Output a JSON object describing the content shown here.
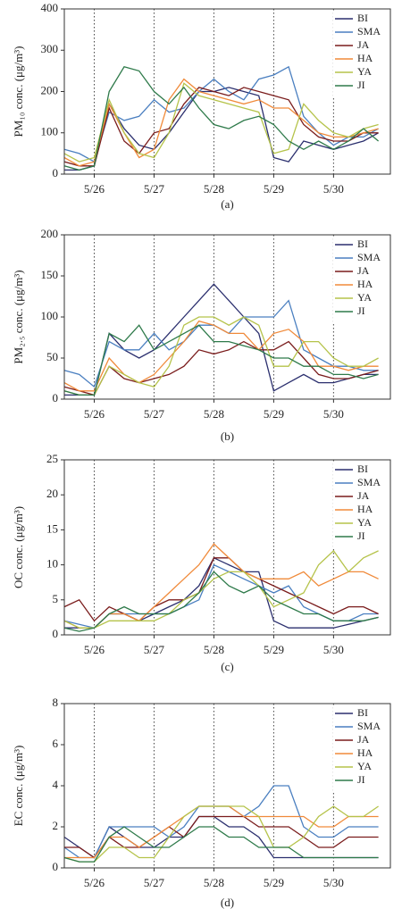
{
  "chart_data": [
    {
      "type": "line",
      "caption": "(a)",
      "ylabel": "PM₁₀ conc. (μg/m³)",
      "legend": "upper right",
      "xgrid": true,
      "x": [
        25.5,
        25.75,
        26,
        26.25,
        26.5,
        26.75,
        27,
        27.25,
        27.5,
        27.75,
        28,
        28.25,
        28.5,
        28.75,
        29,
        29.25,
        29.5,
        29.75,
        30,
        30.25,
        30.5,
        30.75
      ],
      "xlim": [
        25.5,
        30.95
      ],
      "xticks": [
        {
          "value": 26,
          "label": "5/26"
        },
        {
          "value": 27,
          "label": "5/27"
        },
        {
          "value": 28,
          "label": "5/28"
        },
        {
          "value": 29,
          "label": "5/29"
        },
        {
          "value": 30,
          "label": "5/30"
        }
      ],
      "ylim": [
        0,
        400
      ],
      "yticks": [
        0,
        100,
        200,
        300,
        400
      ],
      "series": [
        {
          "name": "BI",
          "color": "#2b2f6e",
          "values": [
            10,
            10,
            20,
            170,
            110,
            70,
            60,
            100,
            150,
            200,
            200,
            210,
            200,
            190,
            40,
            30,
            80,
            70,
            60,
            70,
            80,
            100
          ]
        },
        {
          "name": "SMA",
          "color": "#4a7fc0",
          "values": [
            60,
            50,
            30,
            150,
            130,
            140,
            180,
            150,
            160,
            200,
            230,
            200,
            180,
            230,
            240,
            260,
            140,
            100,
            70,
            90,
            90,
            110
          ]
        },
        {
          "name": "JA",
          "color": "#7a1c1c",
          "values": [
            30,
            20,
            20,
            160,
            80,
            50,
            100,
            110,
            170,
            210,
            200,
            190,
            210,
            200,
            190,
            180,
            120,
            90,
            80,
            80,
            100,
            100
          ]
        },
        {
          "name": "HA",
          "color": "#f08a3a",
          "values": [
            40,
            20,
            30,
            170,
            100,
            40,
            60,
            180,
            230,
            200,
            190,
            180,
            170,
            180,
            160,
            160,
            130,
            100,
            90,
            90,
            100,
            110
          ]
        },
        {
          "name": "YA",
          "color": "#b5c34a",
          "values": [
            50,
            30,
            40,
            180,
            100,
            50,
            40,
            100,
            220,
            190,
            180,
            170,
            160,
            150,
            50,
            60,
            170,
            130,
            100,
            90,
            110,
            120
          ]
        },
        {
          "name": "JI",
          "color": "#2e7a4a",
          "values": [
            20,
            10,
            20,
            200,
            260,
            250,
            200,
            170,
            210,
            160,
            120,
            110,
            130,
            140,
            120,
            80,
            60,
            80,
            60,
            80,
            110,
            80
          ]
        }
      ]
    },
    {
      "type": "line",
      "caption": "(b)",
      "ylabel": "PM₂.₅ conc. (μg/m³)",
      "legend": "upper right",
      "xgrid": true,
      "x": [
        25.5,
        25.75,
        26,
        26.25,
        26.5,
        26.75,
        27,
        27.25,
        27.5,
        27.75,
        28,
        28.25,
        28.5,
        28.75,
        29,
        29.25,
        29.5,
        29.75,
        30,
        30.25,
        30.5,
        30.75
      ],
      "xlim": [
        25.5,
        30.95
      ],
      "xticks": [
        {
          "value": 26,
          "label": "5/26"
        },
        {
          "value": 27,
          "label": "5/27"
        },
        {
          "value": 28,
          "label": "5/28"
        },
        {
          "value": 29,
          "label": "5/29"
        },
        {
          "value": 30,
          "label": "5/30"
        }
      ],
      "ylim": [
        0,
        200
      ],
      "yticks": [
        0,
        50,
        100,
        150,
        200
      ],
      "series": [
        {
          "name": "BI",
          "color": "#2b2f6e",
          "values": [
            5,
            5,
            5,
            80,
            60,
            50,
            60,
            80,
            100,
            120,
            140,
            120,
            100,
            80,
            10,
            20,
            30,
            20,
            20,
            25,
            30,
            30
          ]
        },
        {
          "name": "SMA",
          "color": "#4a7fc0",
          "values": [
            35,
            30,
            15,
            70,
            60,
            60,
            80,
            60,
            70,
            90,
            90,
            80,
            100,
            100,
            100,
            120,
            60,
            50,
            40,
            40,
            35,
            35
          ]
        },
        {
          "name": "JA",
          "color": "#7a1c1c",
          "values": [
            15,
            10,
            5,
            40,
            25,
            20,
            25,
            30,
            40,
            60,
            55,
            60,
            70,
            60,
            60,
            70,
            50,
            30,
            25,
            25,
            30,
            35
          ]
        },
        {
          "name": "HA",
          "color": "#f08a3a",
          "values": [
            20,
            10,
            10,
            50,
            30,
            20,
            30,
            50,
            70,
            95,
            90,
            80,
            80,
            60,
            80,
            85,
            70,
            40,
            40,
            35,
            40,
            40
          ]
        },
        {
          "name": "YA",
          "color": "#b5c34a",
          "values": [
            10,
            5,
            5,
            40,
            30,
            20,
            15,
            40,
            90,
            100,
            100,
            90,
            100,
            90,
            40,
            40,
            70,
            70,
            50,
            40,
            40,
            50
          ]
        },
        {
          "name": "JI",
          "color": "#2e7a4a",
          "values": [
            10,
            5,
            5,
            80,
            70,
            90,
            60,
            70,
            80,
            90,
            70,
            70,
            65,
            60,
            50,
            50,
            40,
            40,
            30,
            30,
            25,
            30
          ]
        }
      ]
    },
    {
      "type": "line",
      "caption": "(c)",
      "ylabel": "OC conc. (μg/m³)",
      "legend": "upper right",
      "xgrid": true,
      "x": [
        25.5,
        25.75,
        26,
        26.25,
        26.5,
        26.75,
        27,
        27.25,
        27.5,
        27.75,
        28,
        28.25,
        28.5,
        28.75,
        29,
        29.25,
        29.5,
        29.75,
        30,
        30.25,
        30.5,
        30.75
      ],
      "xlim": [
        25.5,
        30.95
      ],
      "xticks": [
        {
          "value": 26,
          "label": "5/26"
        },
        {
          "value": 27,
          "label": "5/27"
        },
        {
          "value": 28,
          "label": "5/28"
        },
        {
          "value": 29,
          "label": "5/29"
        },
        {
          "value": 30,
          "label": "5/30"
        }
      ],
      "ylim": [
        0,
        25
      ],
      "yticks": [
        0,
        5,
        10,
        15,
        20,
        25
      ],
      "series": [
        {
          "name": "BI",
          "color": "#2b2f6e",
          "values": [
            1,
            1,
            1,
            3,
            3,
            2,
            3,
            4,
            5,
            7,
            11,
            10,
            9,
            9,
            2,
            1,
            1,
            1,
            1,
            1.5,
            2,
            2.5
          ]
        },
        {
          "name": "SMA",
          "color": "#4a7fc0",
          "values": [
            2,
            1.5,
            1,
            3,
            3,
            3,
            3,
            3,
            4,
            5,
            10,
            9,
            8,
            7,
            6,
            7,
            4,
            3,
            2,
            2,
            3,
            3
          ]
        },
        {
          "name": "JA",
          "color": "#7a1c1c",
          "values": [
            4,
            5,
            2,
            4,
            3,
            2,
            4,
            5,
            5,
            6,
            11,
            11,
            9,
            8,
            7,
            6,
            5,
            4,
            3,
            4,
            4,
            3
          ]
        },
        {
          "name": "HA",
          "color": "#f08a3a",
          "values": [
            2,
            1,
            1,
            3,
            3,
            2,
            4,
            6,
            8,
            10,
            13,
            11,
            9,
            8,
            8,
            8,
            9,
            7,
            8,
            9,
            9,
            8
          ]
        },
        {
          "name": "YA",
          "color": "#b5c34a",
          "values": [
            2,
            1,
            1,
            2,
            2,
            2,
            2,
            3,
            5,
            6,
            8,
            9,
            9,
            7,
            4,
            5,
            6,
            10,
            12,
            9,
            11,
            12
          ]
        },
        {
          "name": "JI",
          "color": "#2e7a4a",
          "values": [
            1,
            0.5,
            1,
            3,
            4,
            3,
            3,
            3,
            4,
            6,
            9,
            7,
            6,
            7,
            5,
            4,
            3,
            3,
            2,
            2,
            2,
            2.5
          ]
        }
      ]
    },
    {
      "type": "line",
      "caption": "(d)",
      "ylabel": "EC conc. (μg/m³)",
      "legend": "upper right",
      "xgrid": true,
      "x": [
        25.5,
        25.75,
        26,
        26.25,
        26.5,
        26.75,
        27,
        27.25,
        27.5,
        27.75,
        28,
        28.25,
        28.5,
        28.75,
        29,
        29.25,
        29.5,
        29.75,
        30,
        30.25,
        30.5,
        30.75
      ],
      "xlim": [
        25.5,
        30.95
      ],
      "xticks": [
        {
          "value": 26,
          "label": "5/26"
        },
        {
          "value": 27,
          "label": "5/27"
        },
        {
          "value": 28,
          "label": "5/28"
        },
        {
          "value": 29,
          "label": "5/29"
        },
        {
          "value": 30,
          "label": "5/30"
        }
      ],
      "ylim": [
        0,
        8
      ],
      "yticks": [
        0,
        2,
        4,
        6,
        8
      ],
      "series": [
        {
          "name": "BI",
          "color": "#2b2f6e",
          "values": [
            1.5,
            1,
            0.5,
            2,
            1.5,
            1,
            1,
            1.5,
            1.5,
            2.5,
            2.5,
            2,
            2,
            1.5,
            0.5,
            0.5,
            0.5,
            0.5,
            0.5,
            0.5,
            0.5,
            0.5
          ]
        },
        {
          "name": "SMA",
          "color": "#4a7fc0",
          "values": [
            1,
            0.5,
            0.5,
            2,
            2,
            2,
            2,
            1.5,
            2,
            3,
            3,
            3,
            2.5,
            3,
            4,
            4,
            2,
            1.5,
            1.5,
            2,
            2,
            2
          ]
        },
        {
          "name": "JA",
          "color": "#7a1c1c",
          "values": [
            1,
            1,
            0.5,
            1.5,
            1,
            1,
            1.5,
            2,
            1.5,
            2.5,
            2.5,
            2.5,
            2.5,
            2,
            2,
            2,
            1.5,
            1,
            1,
            1.5,
            1.5,
            1.5
          ]
        },
        {
          "name": "HA",
          "color": "#f08a3a",
          "values": [
            0.5,
            0.5,
            0.5,
            1.5,
            1.5,
            1,
            1.5,
            2,
            2.5,
            3,
            3,
            3,
            2.5,
            2.5,
            2.5,
            2.5,
            2.5,
            2,
            2,
            2.5,
            2.5,
            2.5
          ]
        },
        {
          "name": "YA",
          "color": "#b5c34a",
          "values": [
            0.5,
            0.3,
            0.3,
            1,
            1,
            0.5,
            0.5,
            1.5,
            2.5,
            3,
            3,
            3,
            3,
            2.5,
            1,
            1,
            1.5,
            2.5,
            3,
            2.5,
            2.5,
            3
          ]
        },
        {
          "name": "JI",
          "color": "#2e7a4a",
          "values": [
            0.5,
            0.3,
            0.3,
            1.5,
            2,
            1.5,
            1,
            1,
            1.5,
            2,
            2,
            1.5,
            1.5,
            1,
            1,
            1,
            0.5,
            0.5,
            0.5,
            0.5,
            0.5,
            0.5
          ]
        }
      ]
    }
  ]
}
